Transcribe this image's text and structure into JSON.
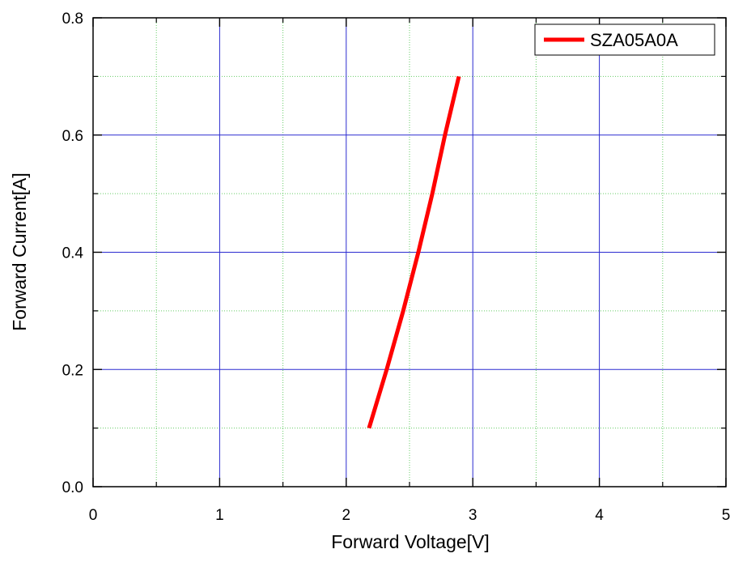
{
  "chart_data": {
    "type": "line",
    "title": "",
    "xlabel": "Forward Voltage[V]",
    "ylabel": "Forward Current[A]",
    "xlim": [
      0,
      5
    ],
    "ylim": [
      0,
      0.8
    ],
    "x_ticks": [
      "0",
      "1",
      "2",
      "3",
      "4",
      "5"
    ],
    "y_ticks": [
      "0.0",
      "0.2",
      "0.4",
      "0.6",
      "0.8"
    ],
    "grid": true,
    "legend_position": "top-right",
    "series": [
      {
        "name": "SZA05A0A",
        "color": "#ff0000",
        "x": [
          2.18,
          2.32,
          2.45,
          2.57,
          2.68,
          2.78,
          2.89
        ],
        "y": [
          0.1,
          0.2,
          0.3,
          0.4,
          0.5,
          0.6,
          0.7
        ]
      }
    ]
  },
  "colors": {
    "major_grid": "#2b2bd0",
    "minor_grid": "#66cc66",
    "axis": "#000000",
    "series": "#ff0000"
  }
}
